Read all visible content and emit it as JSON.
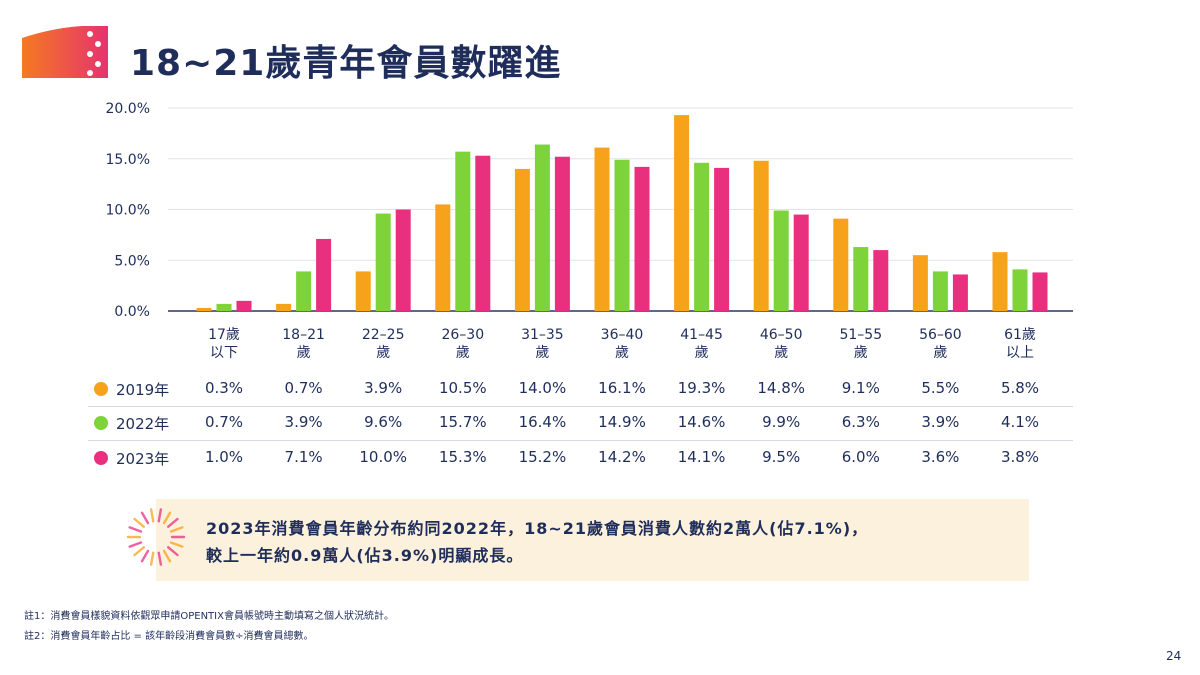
{
  "header": {
    "title": "18~21歲青年會員數躍進"
  },
  "chart_data": {
    "type": "bar",
    "title": "",
    "xlabel": "",
    "ylabel": "",
    "ylim": [
      0,
      20
    ],
    "yticks": [
      "0.0%",
      "5.0%",
      "10.0%",
      "15.0%",
      "20.0%"
    ],
    "grid": true,
    "categories": [
      "17歲\n以下",
      "18–21\n歲",
      "22–25\n歲",
      "26–30\n歲",
      "31–35\n歲",
      "36–40\n歲",
      "41–45\n歲",
      "46–50\n歲",
      "51–55\n歲",
      "56–60\n歲",
      "61歲\n以上"
    ],
    "series": [
      {
        "name": "2019年",
        "color": "#f7a21b",
        "values": [
          0.3,
          0.7,
          3.9,
          10.5,
          14.0,
          16.1,
          19.3,
          14.8,
          9.1,
          5.5,
          5.8
        ]
      },
      {
        "name": "2022年",
        "color": "#7ed23a",
        "values": [
          0.7,
          3.9,
          9.6,
          15.7,
          16.4,
          14.9,
          14.6,
          9.9,
          6.3,
          3.9,
          4.1
        ]
      },
      {
        "name": "2023年",
        "color": "#e8307f",
        "values": [
          1.0,
          7.1,
          10.0,
          15.3,
          15.2,
          14.2,
          14.1,
          9.5,
          6.0,
          3.6,
          3.8
        ]
      }
    ],
    "table": [
      [
        "0.3%",
        "0.7%",
        "3.9%",
        "10.5%",
        "14.0%",
        "16.1%",
        "19.3%",
        "14.8%",
        "9.1%",
        "5.5%",
        "5.8%"
      ],
      [
        "0.7%",
        "3.9%",
        "9.6%",
        "15.7%",
        "16.4%",
        "14.9%",
        "14.6%",
        "9.9%",
        "6.3%",
        "3.9%",
        "4.1%"
      ],
      [
        "1.0%",
        "7.1%",
        "10.0%",
        "15.3%",
        "15.2%",
        "14.2%",
        "14.1%",
        "9.5%",
        "6.0%",
        "3.6%",
        "3.8%"
      ]
    ]
  },
  "callout": {
    "line1": "2023年消費會員年齡分布約同2022年，18~21歲會員消費人數約2萬人(佔7.1%)，",
    "line2": "較上一年約0.9萬人(佔3.9%)明顯成長。"
  },
  "notes": [
    "註1：消費會員樣貌資料依觀眾申請OPENTIX會員帳號時主動填寫之個人狀況統計。",
    "註2：消費會員年齡占比 = 該年齡段消費會員數÷消費會員總數。"
  ],
  "page_number": "24"
}
